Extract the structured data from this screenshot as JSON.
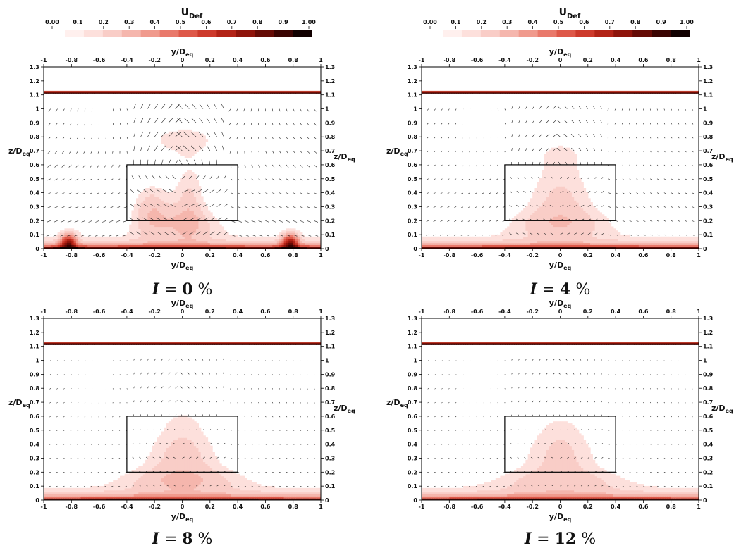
{
  "colorbar": {
    "title": "U",
    "title_sub": "Def",
    "ticks": [
      "0.00",
      "0.1",
      "0.2",
      "0.3",
      "0.4",
      "0.5",
      "0.6",
      "0.7",
      "0.8",
      "0.9",
      "1.00"
    ],
    "levels": [
      "#fff0ee",
      "#fde0dc",
      "#f9cdc7",
      "#f5b6ad",
      "#f09a8d",
      "#e9796b",
      "#de5849",
      "#cd3a2c",
      "#b22317",
      "#8e140b",
      "#650b06",
      "#3a0402",
      "#110000"
    ]
  },
  "axes": {
    "xlabel": "y/D",
    "xlabel_sub": "eq",
    "ylabel": "z/D",
    "ylabel_sub": "eq",
    "xticks": [
      "-1",
      "-0.8",
      "-0.6",
      "-0.4",
      "-0.2",
      "0",
      "0.2",
      "0.4",
      "0.6",
      "0.8",
      "1"
    ],
    "yticks": [
      "0",
      "0.1",
      "0.2",
      "0.3",
      "0.4",
      "0.5",
      "0.6",
      "0.7",
      "0.8",
      "0.9",
      "1",
      "1.1",
      "1.2",
      "1.3"
    ]
  },
  "chart_data": [
    {
      "type": "heatmap",
      "caption": "I = 0 %",
      "caption_var": "I",
      "caption_eq": " = ",
      "caption_num": "0",
      "caption_unit": " %",
      "xlim": [
        -1,
        1
      ],
      "ylim": [
        0,
        1.3
      ],
      "colorbar_range": [
        0,
        1
      ],
      "surface_line_z": 1.12,
      "box": {
        "y": [
          -0.4,
          0.4
        ],
        "z": [
          0.2,
          0.6
        ]
      },
      "vectors": true,
      "wake_blobs": [
        {
          "y": 0.0,
          "z": 0.78,
          "sy": 0.36,
          "sz": 0.14,
          "amp": 0.12
        },
        {
          "y": -0.22,
          "z": 0.3,
          "sy": 0.14,
          "sz": 0.18,
          "amp": 0.18
        },
        {
          "y": 0.05,
          "z": 0.35,
          "sy": 0.12,
          "sz": 0.28,
          "amp": 0.16
        },
        {
          "y": 0.0,
          "z": 0.18,
          "sy": 0.32,
          "sz": 0.12,
          "amp": 0.14
        },
        {
          "y": -0.82,
          "z": 0.05,
          "sy": 0.06,
          "sz": 0.06,
          "amp": 0.55
        },
        {
          "y": 0.78,
          "z": 0.05,
          "sy": 0.06,
          "sz": 0.06,
          "amp": 0.55
        }
      ]
    },
    {
      "type": "heatmap",
      "caption": "I = 4 %",
      "caption_var": "I",
      "caption_eq": " = ",
      "caption_num": "4",
      "caption_unit": " %",
      "xlim": [
        -1,
        1
      ],
      "ylim": [
        0,
        1.3
      ],
      "colorbar_range": [
        0,
        1
      ],
      "surface_line_z": 1.12,
      "box": {
        "y": [
          -0.4,
          0.4
        ],
        "z": [
          0.2,
          0.6
        ]
      },
      "vectors": true,
      "wake_blobs": [
        {
          "y": 0.0,
          "z": 0.68,
          "sy": 0.22,
          "sz": 0.14,
          "amp": 0.1
        },
        {
          "y": 0.0,
          "z": 0.38,
          "sy": 0.26,
          "sz": 0.22,
          "amp": 0.16
        },
        {
          "y": 0.0,
          "z": 0.18,
          "sy": 0.4,
          "sz": 0.12,
          "amp": 0.14
        }
      ]
    },
    {
      "type": "heatmap",
      "caption": "I = 8 %",
      "caption_var": "I",
      "caption_eq": " = ",
      "caption_num": "8",
      "caption_unit": " %",
      "xlim": [
        -1,
        1
      ],
      "ylim": [
        0,
        1.3
      ],
      "colorbar_range": [
        0,
        1
      ],
      "surface_line_z": 1.12,
      "box": {
        "y": [
          -0.4,
          0.4
        ],
        "z": [
          0.2,
          0.6
        ]
      },
      "vectors": true,
      "wake_blobs": [
        {
          "y": 0.0,
          "z": 0.55,
          "sy": 0.22,
          "sz": 0.18,
          "amp": 0.1
        },
        {
          "y": 0.0,
          "z": 0.3,
          "sy": 0.3,
          "sz": 0.18,
          "amp": 0.16
        },
        {
          "y": 0.0,
          "z": 0.14,
          "sy": 0.48,
          "sz": 0.1,
          "amp": 0.14
        }
      ]
    },
    {
      "type": "heatmap",
      "caption": "I = 12 %",
      "caption_var": "I",
      "caption_eq": " = ",
      "caption_num": "12",
      "caption_unit": " %",
      "xlim": [
        -1,
        1
      ],
      "ylim": [
        0,
        1.3
      ],
      "colorbar_range": [
        0,
        1
      ],
      "surface_line_z": 1.12,
      "box": {
        "y": [
          -0.4,
          0.4
        ],
        "z": [
          0.2,
          0.6
        ]
      },
      "vectors": true,
      "wake_blobs": [
        {
          "y": 0.0,
          "z": 0.52,
          "sy": 0.22,
          "sz": 0.18,
          "amp": 0.09
        },
        {
          "y": 0.0,
          "z": 0.3,
          "sy": 0.32,
          "sz": 0.18,
          "amp": 0.14
        },
        {
          "y": 0.0,
          "z": 0.13,
          "sy": 0.52,
          "sz": 0.1,
          "amp": 0.12
        }
      ]
    }
  ]
}
